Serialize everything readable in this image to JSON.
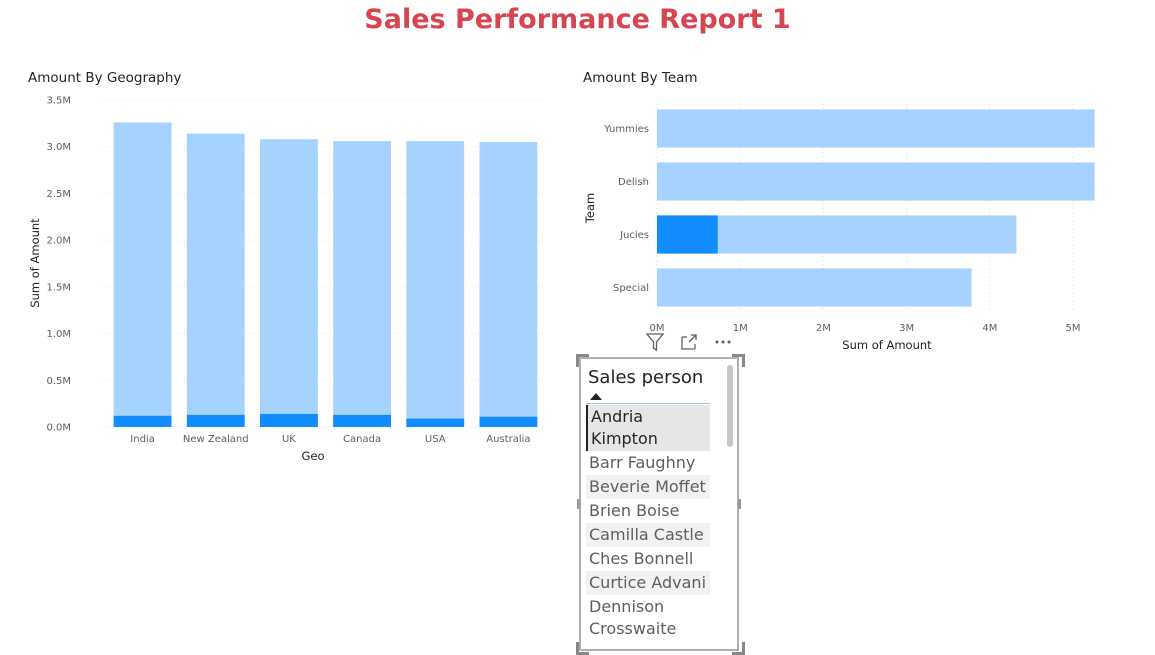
{
  "report": {
    "title": "Sales Performance Report 1"
  },
  "colors": {
    "title": "#d64550",
    "bar_light": "#a5d3fd",
    "bar_dark": "#118dff",
    "grid": "#e1dfdd"
  },
  "chart_data": [
    {
      "type": "bar",
      "title": "Amount By Geography",
      "xlabel": "Geo",
      "ylabel": "Sum of Amount",
      "categories": [
        "India",
        "New Zealand",
        "UK",
        "Canada",
        "USA",
        "Australia"
      ],
      "series": [
        {
          "values": [
            3.26,
            3.14,
            3.08,
            3.06,
            3.06,
            3.05
          ],
          "color": "#a5d3fd"
        },
        {
          "values": [
            0.12,
            0.13,
            0.14,
            0.13,
            0.09,
            0.11
          ],
          "color": "#118dff"
        }
      ],
      "ylim": [
        0,
        3.5
      ],
      "yticks": [
        "0.0M",
        "0.5M",
        "1.0M",
        "1.5M",
        "2.0M",
        "2.5M",
        "3.0M",
        "3.5M"
      ],
      "grid": true
    },
    {
      "type": "bar",
      "orientation": "horizontal",
      "title": "Amount By Team",
      "xlabel": "Sum of Amount",
      "ylabel": "Team",
      "categories": [
        "Yummies",
        "Delish",
        "Jucies",
        "Special"
      ],
      "series": [
        {
          "values": [
            5.26,
            5.26,
            4.32,
            3.78
          ],
          "color": "#a5d3fd"
        },
        {
          "values": [
            0,
            0,
            0.73,
            0
          ],
          "color": "#118dff"
        }
      ],
      "xlim": [
        0,
        5.3
      ],
      "xticks": [
        "0M",
        "1M",
        "2M",
        "3M",
        "4M",
        "5M"
      ],
      "grid": true
    }
  ],
  "slicer": {
    "title": "Sales person",
    "items": [
      {
        "label": "Andria Kimpton",
        "selected": true
      },
      {
        "label": "Barr Faughny"
      },
      {
        "label": "Beverie Moffet"
      },
      {
        "label": "Brien Boise"
      },
      {
        "label": "Camilla Castle"
      },
      {
        "label": "Ches Bonnell"
      },
      {
        "label": "Curtice Advani"
      },
      {
        "label": "Dennison Crosswaite"
      }
    ],
    "header_icons": [
      "filter-icon",
      "focus-mode-icon",
      "more-options-icon"
    ]
  }
}
